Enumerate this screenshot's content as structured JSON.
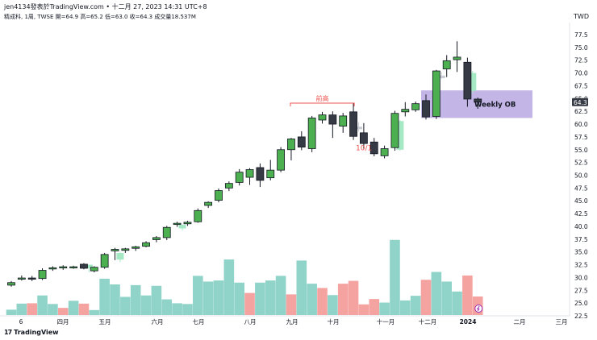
{
  "header": {
    "line1": "jen4134發表於TradingView.com • 十二月 27, 2023 14:31 UTC+8",
    "line2": "精成科, 1周, TWSE  開=64.9  高=65.2  低=63.0  收=64.3  成交量18.537M",
    "currency": "TWD"
  },
  "footer": {
    "brand": "TradingView",
    "logo_text": "17"
  },
  "colors": {
    "up": "#4caf50",
    "down": "#363a45",
    "vol_up": "#8fd3c9",
    "vol_down": "#f5a3a1",
    "ob_box": "#b9a8e0",
    "ghost_up": "#a5e8c4",
    "ghost_down": "#c9ccd3",
    "prev_high": "#ef5350"
  },
  "chart_data": {
    "type": "candlestick",
    "ylim": [
      22.5,
      80
    ],
    "y_ticks": [
      "77.5",
      "75.0",
      "72.5",
      "70.0",
      "67.5",
      "65.0",
      "62.5",
      "60.0",
      "57.5",
      "55.0",
      "52.5",
      "50.0",
      "47.5",
      "45.0",
      "42.5",
      "40.0",
      "37.5",
      "35.0",
      "32.5",
      "30.0",
      "27.5",
      "25.0",
      "22.5"
    ],
    "x_ticks": [
      "6",
      "四月",
      "五月",
      "六月",
      "七月",
      "八月",
      "九月",
      "十月",
      "十一月",
      "十二月",
      "2024",
      "二月",
      "三月"
    ],
    "last_price_label": "64.3",
    "candles": [
      {
        "o": 28.5,
        "h": 29.3,
        "l": 28.2,
        "c": 29.0
      },
      {
        "o": 29.8,
        "h": 30.4,
        "l": 29.4,
        "c": 29.9
      },
      {
        "o": 29.9,
        "h": 30.3,
        "l": 29.3,
        "c": 29.8
      },
      {
        "o": 29.8,
        "h": 31.8,
        "l": 29.5,
        "c": 31.4
      },
      {
        "o": 31.8,
        "h": 32.2,
        "l": 31.3,
        "c": 31.9
      },
      {
        "o": 31.9,
        "h": 32.4,
        "l": 31.5,
        "c": 32.1
      },
      {
        "o": 32.0,
        "h": 32.3,
        "l": 31.7,
        "c": 32.1
      },
      {
        "o": 32.6,
        "h": 32.8,
        "l": 31.6,
        "c": 31.8
      },
      {
        "o": 31.3,
        "h": 32.2,
        "l": 31.0,
        "c": 32.0
      },
      {
        "o": 32.0,
        "h": 34.8,
        "l": 31.7,
        "c": 34.5
      },
      {
        "o": 35.2,
        "h": 35.8,
        "l": 33.4,
        "c": 35.5
      },
      {
        "o": 35.3,
        "h": 35.8,
        "l": 34.8,
        "c": 35.6
      },
      {
        "o": 35.7,
        "h": 36.2,
        "l": 35.2,
        "c": 36.0
      },
      {
        "o": 36.1,
        "h": 37.1,
        "l": 35.9,
        "c": 36.8
      },
      {
        "o": 37.4,
        "h": 38.1,
        "l": 36.9,
        "c": 37.8
      },
      {
        "o": 37.8,
        "h": 40.1,
        "l": 37.3,
        "c": 39.8
      },
      {
        "o": 40.4,
        "h": 40.9,
        "l": 39.9,
        "c": 40.6
      },
      {
        "o": 40.5,
        "h": 41.1,
        "l": 40.1,
        "c": 40.8
      },
      {
        "o": 40.9,
        "h": 43.5,
        "l": 40.7,
        "c": 43.1
      },
      {
        "o": 44.1,
        "h": 44.9,
        "l": 43.6,
        "c": 44.7
      },
      {
        "o": 45.1,
        "h": 47.4,
        "l": 44.7,
        "c": 47.0
      },
      {
        "o": 47.5,
        "h": 48.8,
        "l": 46.9,
        "c": 48.4
      },
      {
        "o": 48.6,
        "h": 51.2,
        "l": 48.0,
        "c": 50.6
      },
      {
        "o": 49.6,
        "h": 51.4,
        "l": 48.1,
        "c": 51.1
      },
      {
        "o": 51.5,
        "h": 52.3,
        "l": 47.7,
        "c": 49.0
      },
      {
        "o": 49.5,
        "h": 53.0,
        "l": 49.0,
        "c": 51.0
      },
      {
        "o": 51.0,
        "h": 55.5,
        "l": 50.6,
        "c": 55.0
      },
      {
        "o": 55.0,
        "h": 57.3,
        "l": 52.9,
        "c": 57.1
      },
      {
        "o": 57.5,
        "h": 58.6,
        "l": 54.9,
        "c": 55.5
      },
      {
        "o": 55.2,
        "h": 61.6,
        "l": 54.5,
        "c": 61.2
      },
      {
        "o": 60.8,
        "h": 62.4,
        "l": 60.1,
        "c": 61.8
      },
      {
        "o": 61.8,
        "h": 62.5,
        "l": 57.3,
        "c": 60.0
      },
      {
        "o": 59.6,
        "h": 62.2,
        "l": 58.3,
        "c": 61.6
      },
      {
        "o": 62.4,
        "h": 64.1,
        "l": 56.9,
        "c": 57.6
      },
      {
        "o": 58.3,
        "h": 60.2,
        "l": 55.2,
        "c": 56.2
      },
      {
        "o": 56.5,
        "h": 57.3,
        "l": 53.7,
        "c": 54.2
      },
      {
        "o": 53.8,
        "h": 55.8,
        "l": 53.3,
        "c": 55.2
      },
      {
        "o": 55.4,
        "h": 62.6,
        "l": 54.8,
        "c": 62.1
      },
      {
        "o": 62.4,
        "h": 64.3,
        "l": 61.5,
        "c": 62.9
      },
      {
        "o": 62.8,
        "h": 64.4,
        "l": 62.4,
        "c": 64.0
      },
      {
        "o": 64.6,
        "h": 65.8,
        "l": 60.9,
        "c": 61.4
      },
      {
        "o": 61.5,
        "h": 70.6,
        "l": 61.0,
        "c": 70.4
      },
      {
        "o": 70.8,
        "h": 73.5,
        "l": 69.2,
        "c": 72.4
      },
      {
        "o": 72.6,
        "h": 76.2,
        "l": 70.2,
        "c": 73.1
      },
      {
        "o": 72.1,
        "h": 73.0,
        "l": 63.4,
        "c": 64.9
      },
      {
        "o": 64.9,
        "h": 65.2,
        "l": 63.0,
        "c": 64.3
      }
    ],
    "volumes": [
      {
        "v": 1.5,
        "up": true
      },
      {
        "v": 3.2,
        "up": true
      },
      {
        "v": 3.3,
        "up": false
      },
      {
        "v": 5.5,
        "up": true
      },
      {
        "v": 3.1,
        "up": true
      },
      {
        "v": 2.0,
        "up": false
      },
      {
        "v": 4.0,
        "up": true
      },
      {
        "v": 3.2,
        "up": false
      },
      {
        "v": 1.4,
        "up": true
      },
      {
        "v": 10.2,
        "up": true
      },
      {
        "v": 8.6,
        "up": true
      },
      {
        "v": 5.1,
        "up": true
      },
      {
        "v": 8.4,
        "up": true
      },
      {
        "v": 5.5,
        "up": true
      },
      {
        "v": 8.2,
        "up": true
      },
      {
        "v": 4.4,
        "up": true
      },
      {
        "v": 3.3,
        "up": true
      },
      {
        "v": 3.1,
        "up": true
      },
      {
        "v": 11.0,
        "up": true
      },
      {
        "v": 9.4,
        "up": true
      },
      {
        "v": 9.7,
        "up": true
      },
      {
        "v": 15.6,
        "up": true
      },
      {
        "v": 9.1,
        "up": true
      },
      {
        "v": 6.2,
        "up": false
      },
      {
        "v": 9.1,
        "up": true
      },
      {
        "v": 9.7,
        "up": true
      },
      {
        "v": 11.0,
        "up": true
      },
      {
        "v": 5.8,
        "up": false
      },
      {
        "v": 15.3,
        "up": true
      },
      {
        "v": 8.8,
        "up": true
      },
      {
        "v": 7.6,
        "up": false
      },
      {
        "v": 5.6,
        "up": true
      },
      {
        "v": 8.8,
        "up": false
      },
      {
        "v": 9.6,
        "up": false
      },
      {
        "v": 3.0,
        "up": false
      },
      {
        "v": 4.5,
        "up": false
      },
      {
        "v": 3.5,
        "up": true
      },
      {
        "v": 21.1,
        "up": true
      },
      {
        "v": 4.1,
        "up": true
      },
      {
        "v": 5.4,
        "up": true
      },
      {
        "v": 9.9,
        "up": false
      },
      {
        "v": 12.1,
        "up": true
      },
      {
        "v": 9.4,
        "up": true
      },
      {
        "v": 6.6,
        "up": true
      },
      {
        "v": 11.1,
        "up": false
      },
      {
        "v": 5.2,
        "up": false
      }
    ],
    "ghost_candles": [
      {
        "at": 7.5,
        "o": 31.8,
        "h": 32.2,
        "l": 31.0,
        "c": 32.5,
        "up": true
      },
      {
        "at": 10.5,
        "o": 33.5,
        "h": 35.0,
        "l": 33.0,
        "c": 34.8,
        "up": true
      },
      {
        "at": 16.5,
        "o": 39.6,
        "h": 40.4,
        "l": 39.2,
        "c": 40.3,
        "up": true
      },
      {
        "at": 33.5,
        "o": 59.0,
        "h": 60.4,
        "l": 58.5,
        "c": 59.5,
        "up": false
      },
      {
        "at": 37.5,
        "o": 55.0,
        "h": 60.8,
        "l": 54.8,
        "c": 60.6,
        "up": true
      },
      {
        "at": 41.5,
        "o": 69.5,
        "h": 70.2,
        "l": 68.8,
        "c": 69.0,
        "up": false
      },
      {
        "at": 44.5,
        "o": 66.5,
        "h": 70.4,
        "l": 66.0,
        "c": 70.0,
        "up": true
      }
    ],
    "annotations": {
      "prev_high_label": "前高",
      "prev_high_price": 64.1,
      "prev_high_from": 27,
      "prev_high_to": 33,
      "date_label": "10/1",
      "ob_label": "Weekly OB",
      "ob_top": 66.6,
      "ob_bottom": 61.2,
      "ob_from": 40
    }
  }
}
